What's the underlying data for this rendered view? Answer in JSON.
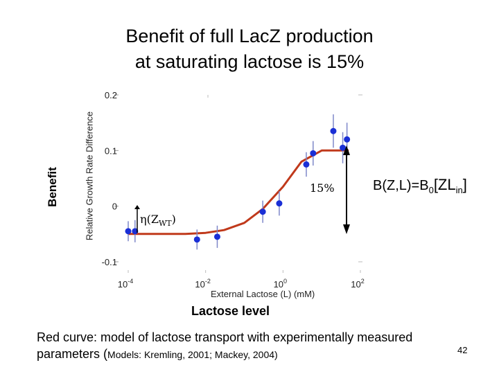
{
  "slide": {
    "title_line1": "Benefit of full LacZ production",
    "title_line2": "at saturating lactose is 15%",
    "outer_ylabel": "Benefit",
    "outer_xlabel": "Lactose level",
    "pct_label": "15%",
    "eta_label": "η(Z",
    "eta_sub": "WT",
    "eta_close": ")",
    "formula_main": "B(Z,L)=B",
    "formula_sub0": "0",
    "formula_bracket": "[ZL",
    "formula_sub_in": "in",
    "formula_close": "]",
    "note_line1": "Red curve: model of lactose transport with experimentally measured",
    "note_line2_prefix": "parameters (",
    "note_citation": "Models: Kremling, 2001; Mackey, 2004)",
    "page_number": "42"
  },
  "colors": {
    "curve": "#c0391b",
    "points": "#1a2fd6",
    "errorbars": "#7e87c9",
    "arrow": "#000000"
  },
  "chart_data": {
    "type": "scatter",
    "title": "",
    "xlabel": "External Lactose (L) (mM)",
    "ylabel": "Relative Growth Rate Difference",
    "xscale": "log",
    "xlim": [
      0.0001,
      100
    ],
    "ylim": [
      -0.1,
      0.2
    ],
    "xticks": [
      "10-4",
      "10-2",
      "100",
      "102"
    ],
    "yticks": [
      "0.2",
      "0.1",
      "0",
      "-0.1"
    ],
    "grid": false,
    "series": [
      {
        "kind": "measured",
        "x": [
          0.0001,
          0.00015,
          0.006,
          0.02,
          0.3,
          0.8,
          4.0,
          6.0,
          20,
          35,
          45
        ],
        "y": [
          -0.045,
          -0.045,
          -0.06,
          -0.055,
          -0.01,
          0.005,
          0.075,
          0.095,
          0.135,
          0.105,
          0.12
        ],
        "err": [
          0.018,
          0.02,
          0.018,
          0.02,
          0.02,
          0.022,
          0.022,
          0.022,
          0.03,
          0.028,
          0.03
        ]
      },
      {
        "kind": "model",
        "x": [
          0.0001,
          0.003,
          0.01,
          0.03,
          0.1,
          0.3,
          1,
          3,
          10,
          30,
          50
        ],
        "y": [
          -0.05,
          -0.05,
          -0.048,
          -0.043,
          -0.03,
          -0.005,
          0.035,
          0.08,
          0.1,
          0.1,
          0.1
        ]
      }
    ],
    "annotations": [
      "15%",
      "η(ZWT)",
      "B(Z,L)=B0[ZLin]"
    ]
  }
}
